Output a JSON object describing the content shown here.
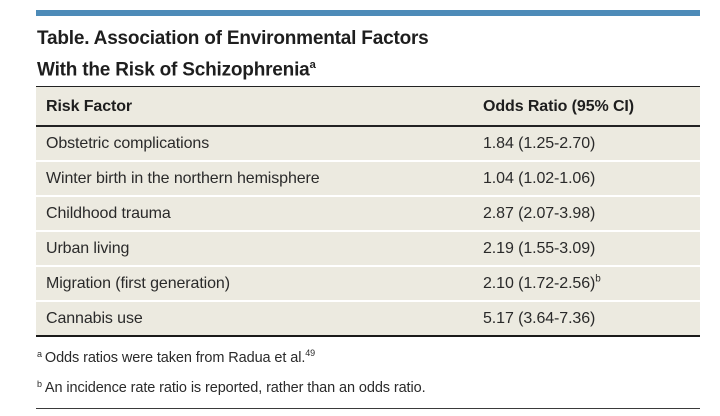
{
  "title": {
    "line1": "Table. Association of Environmental Factors",
    "line2": "With the Risk of Schizophrenia",
    "superscript": "a"
  },
  "table": {
    "headers": [
      "Risk Factor",
      "Odds Ratio (95% CI)"
    ],
    "rows": [
      {
        "risk_factor": "Obstetric complications",
        "odds_ratio": "1.84 (1.25-2.70)",
        "sup": ""
      },
      {
        "risk_factor": "Winter birth in the northern hemisphere",
        "odds_ratio": "1.04 (1.02-1.06)",
        "sup": ""
      },
      {
        "risk_factor": "Childhood trauma",
        "odds_ratio": "2.87 (2.07-3.98)",
        "sup": ""
      },
      {
        "risk_factor": "Urban living",
        "odds_ratio": "2.19 (1.55-3.09)",
        "sup": ""
      },
      {
        "risk_factor": "Migration (first generation)",
        "odds_ratio": "2.10 (1.72-2.56)",
        "sup": "b"
      },
      {
        "risk_factor": "Cannabis use",
        "odds_ratio": "5.17 (3.64-7.36)",
        "sup": ""
      }
    ]
  },
  "footnotes": [
    {
      "marker": "a",
      "text": "Odds ratios were taken from Radua et al.",
      "ref": "49"
    },
    {
      "marker": "b",
      "text": "An incidence rate ratio is reported, rather than an odds ratio.",
      "ref": ""
    }
  ],
  "colors": {
    "accent_bar": "#4D8BB8",
    "table_background": "#ECEAE0",
    "rule": "#1A1A1A",
    "row_separator": "#FFFFFF",
    "text": "#2A2A2A"
  }
}
